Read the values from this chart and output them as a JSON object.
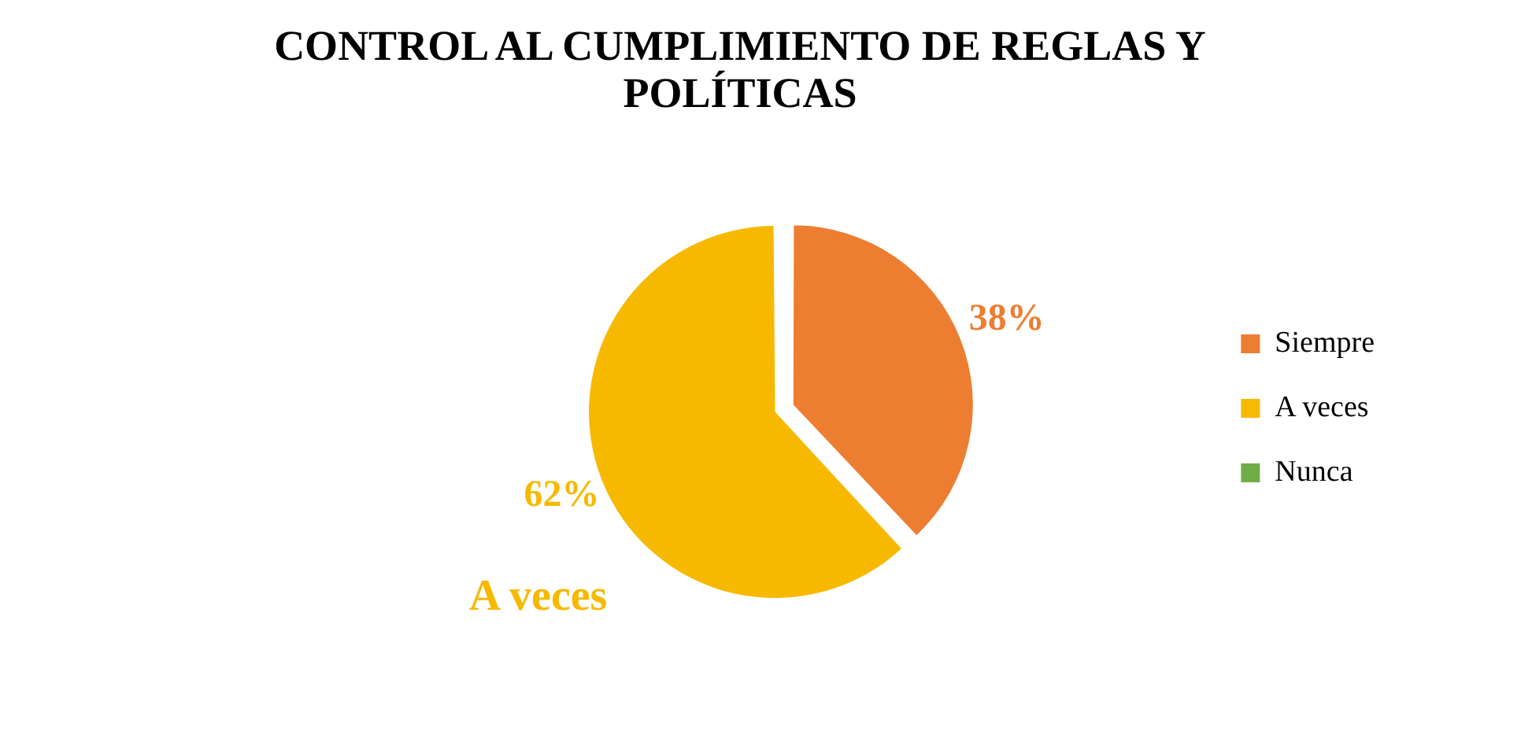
{
  "chart_data": {
    "type": "pie",
    "title": "CONTROL AL CUMPLIMIENTO DE REGLAS Y POLÍTICAS",
    "categories": [
      "Siempre",
      "A veces",
      "Nunca"
    ],
    "values": [
      38,
      62,
      0
    ],
    "colors": [
      "#ed7d31",
      "#f7b900",
      "#70ad47"
    ],
    "value_labels": [
      "38%",
      "62%",
      null
    ],
    "annotations": [
      "A veces"
    ],
    "legend": "right"
  }
}
